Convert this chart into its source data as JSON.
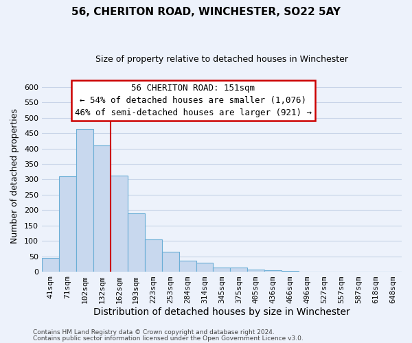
{
  "title": "56, CHERITON ROAD, WINCHESTER, SO22 5AY",
  "subtitle": "Size of property relative to detached houses in Winchester",
  "xlabel": "Distribution of detached houses by size in Winchester",
  "ylabel": "Number of detached properties",
  "bar_labels": [
    "41sqm",
    "71sqm",
    "102sqm",
    "132sqm",
    "162sqm",
    "193sqm",
    "223sqm",
    "253sqm",
    "284sqm",
    "314sqm",
    "345sqm",
    "375sqm",
    "405sqm",
    "436sqm",
    "466sqm",
    "496sqm",
    "527sqm",
    "557sqm",
    "587sqm",
    "618sqm",
    "648sqm"
  ],
  "bar_values": [
    46,
    311,
    464,
    411,
    312,
    190,
    105,
    65,
    35,
    30,
    14,
    14,
    8,
    5,
    2,
    1,
    0,
    0,
    0,
    0,
    1
  ],
  "bar_color": "#c8d8ee",
  "bar_edge_color": "#6baed6",
  "vline_color": "#cc0000",
  "annotation_title": "56 CHERITON ROAD: 151sqm",
  "annotation_line1": "← 54% of detached houses are smaller (1,076)",
  "annotation_line2": "46% of semi-detached houses are larger (921) →",
  "annotation_box_facecolor": "#ffffff",
  "annotation_box_edgecolor": "#cc0000",
  "ylim": [
    0,
    620
  ],
  "yticks": [
    0,
    50,
    100,
    150,
    200,
    250,
    300,
    350,
    400,
    450,
    500,
    550,
    600
  ],
  "grid_color": "#c8d4e8",
  "footnote1": "Contains HM Land Registry data © Crown copyright and database right 2024.",
  "footnote2": "Contains public sector information licensed under the Open Government Licence v3.0.",
  "background_color": "#edf2fb",
  "title_fontsize": 11,
  "subtitle_fontsize": 9,
  "xlabel_fontsize": 10,
  "ylabel_fontsize": 9,
  "tick_fontsize": 8,
  "annotation_fontsize": 9,
  "footnote_fontsize": 6.5
}
